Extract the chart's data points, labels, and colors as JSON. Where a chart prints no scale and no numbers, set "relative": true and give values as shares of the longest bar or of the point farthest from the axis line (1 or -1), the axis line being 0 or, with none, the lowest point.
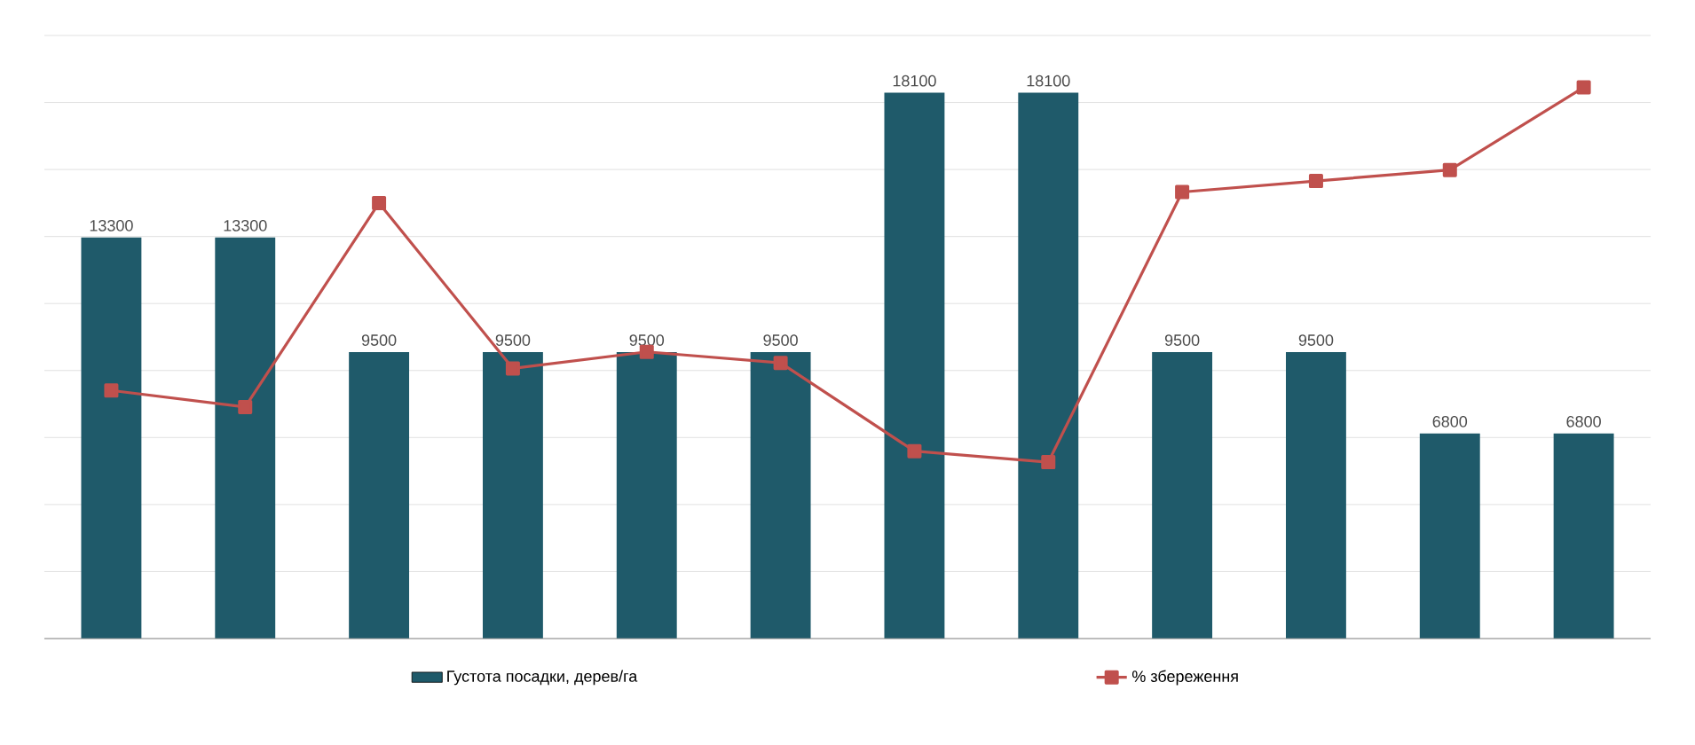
{
  "chart_data": [
    {
      "type": "bar",
      "categories": [
        null,
        null,
        null,
        null,
        null,
        null,
        null,
        null,
        null,
        null,
        null,
        null
      ],
      "series": [
        {
          "name": "Густота посадки, дерев/га",
          "color": "#1f5a6a",
          "values": [
            13300,
            13300,
            9500,
            9500,
            9500,
            9500,
            18100,
            18100,
            9500,
            9500,
            6800,
            6800
          ]
        }
      ],
      "ylim": [
        0,
        20000
      ],
      "yticks": [
        {
          "value": 2222,
          "label": null
        },
        {
          "value": 4444,
          "label": null
        },
        {
          "value": 6667,
          "label": null
        },
        {
          "value": 8889,
          "label": null
        },
        {
          "value": 11111,
          "label": null
        },
        {
          "value": 13333,
          "label": null
        },
        {
          "value": 15556,
          "label": null
        },
        {
          "value": 17778,
          "label": null
        },
        {
          "value": 20000,
          "label": null
        }
      ],
      "grid": "y",
      "data_labels": true,
      "legend": "bottom"
    },
    {
      "type": "line",
      "categories": [
        null,
        null,
        null,
        null,
        null,
        null,
        null,
        null,
        null,
        null,
        null,
        null
      ],
      "series": [
        {
          "name": "% збереження",
          "color": "#c0504d",
          "values": [
            0.45,
            0.42,
            0.79,
            0.49,
            0.52,
            0.5,
            0.34,
            0.32,
            0.81,
            0.83,
            0.85,
            1
          ]
        }
      ],
      "relative": true,
      "marker": "square",
      "legend": "bottom"
    }
  ]
}
